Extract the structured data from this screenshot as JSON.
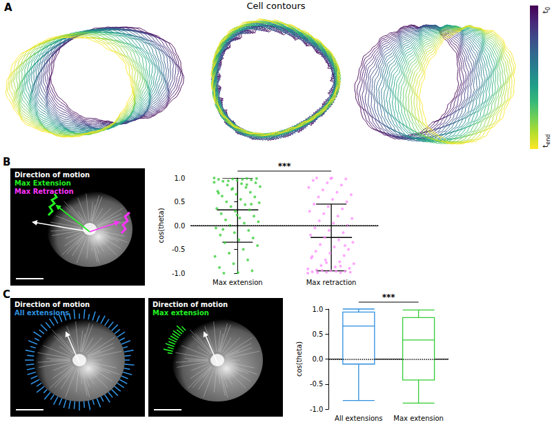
{
  "panels": [
    {
      "label": "A",
      "title": "Cell contours",
      "colorbar": {
        "colors": [
          "#440154",
          "#482878",
          "#3e4a89",
          "#31688e",
          "#26828e",
          "#1f9e89",
          "#35b779",
          "#6ece58",
          "#b5de2b",
          "#fde725"
        ],
        "top": {
          "text": "t",
          "sub": "0"
        },
        "bottom": {
          "text": "t",
          "sub": "end"
        }
      }
    },
    {
      "label": "B",
      "legend": [
        {
          "text": "Direction of motion",
          "color": "#ffffff"
        },
        {
          "text": "Max Extension",
          "color": "#22ee22"
        },
        {
          "text": "Max Retraction",
          "color": "#ff33ff"
        }
      ]
    },
    {
      "label": "C",
      "images": [
        {
          "legend": [
            {
              "text": "Direction of motion",
              "color": "#ffffff"
            },
            {
              "text": "All extensions",
              "color": "#2f8fdf"
            }
          ]
        },
        {
          "legend": [
            {
              "text": "Direction of motion",
              "color": "#ffffff"
            },
            {
              "text": "Max extension",
              "color": "#22ee22"
            }
          ]
        }
      ]
    }
  ],
  "chart_data": [
    {
      "type": "scatter",
      "y_label": "cos(theta)",
      "categories": [
        "Max extension",
        "Max retraction"
      ],
      "ylim": [
        -1,
        1
      ],
      "yticks": [
        {
          "value": -1,
          "label": "-1.0"
        },
        {
          "value": -0.5,
          "label": "-0.5"
        },
        {
          "value": 0,
          "label": "0.0"
        },
        {
          "value": 0.5,
          "label": "0.5"
        },
        {
          "value": 1,
          "label": "1.0"
        }
      ],
      "grid": false,
      "reference_line": 0,
      "significance": "***",
      "colors": [
        "#33cc33",
        "#ff88ff"
      ],
      "values": [
        [
          1.0,
          0.99,
          0.98,
          0.97,
          0.96,
          0.95,
          0.93,
          0.9,
          0.88,
          0.85,
          0.82,
          0.8,
          0.76,
          0.72,
          0.7,
          0.66,
          0.62,
          0.6,
          0.55,
          0.5,
          0.48,
          0.44,
          0.4,
          0.36,
          0.33,
          0.3,
          0.25,
          0.2,
          0.16,
          0.12,
          0.08,
          0.05,
          0.0,
          -0.05,
          -0.1,
          -0.15,
          -0.2,
          -0.26,
          -0.3,
          -0.36,
          -0.42,
          -0.5,
          -0.58,
          -0.65,
          -0.72,
          -0.8,
          -0.88,
          -0.95,
          -0.99,
          -1.0,
          0.99,
          0.97,
          0.94,
          0.91,
          0.86,
          0.78,
          0.68,
          0.45,
          0.22,
          -0.08
        ],
        [
          -1.0,
          -0.99,
          -0.98,
          -0.97,
          -0.96,
          -0.95,
          -0.93,
          -0.9,
          -0.87,
          -0.84,
          -0.8,
          -0.76,
          -0.72,
          -0.68,
          -0.63,
          -0.58,
          -0.54,
          -0.5,
          -0.45,
          -0.4,
          -0.35,
          -0.3,
          -0.25,
          -0.2,
          -0.15,
          -0.1,
          -0.05,
          0.0,
          0.05,
          0.1,
          0.15,
          0.2,
          0.25,
          0.3,
          0.35,
          0.4,
          0.45,
          0.5,
          0.55,
          0.6,
          0.65,
          0.7,
          0.75,
          0.8,
          0.85,
          0.9,
          0.95,
          0.98,
          1.0,
          -0.99,
          -0.98,
          -0.96,
          -0.94,
          -0.91,
          -0.85,
          -0.78,
          -0.65,
          -0.42,
          0.99,
          1.0
        ]
      ],
      "error_bars": {
        "center": [
          0.33,
          -0.25
        ],
        "low": [
          -0.35,
          -0.95
        ],
        "high": [
          1.0,
          0.45
        ]
      }
    },
    {
      "type": "boxplot",
      "y_label": "cos(theta)",
      "categories": [
        "All extensions",
        "Max extension"
      ],
      "ylim": [
        -1,
        1
      ],
      "yticks": [
        {
          "value": -1,
          "label": "-1.0"
        },
        {
          "value": -0.5,
          "label": "-0.5"
        },
        {
          "value": 0,
          "label": "0.0"
        },
        {
          "value": 0.5,
          "label": "0.5"
        },
        {
          "value": 1,
          "label": "1.0"
        }
      ],
      "grid": false,
      "reference_line": 0,
      "significance": "***",
      "colors": [
        "#2f8fdf",
        "#33cc33"
      ],
      "boxes": [
        [
          -0.83,
          -0.1,
          0.66,
          0.94,
          1.0
        ],
        [
          -0.88,
          -0.42,
          0.38,
          0.83,
          0.98
        ]
      ]
    }
  ]
}
